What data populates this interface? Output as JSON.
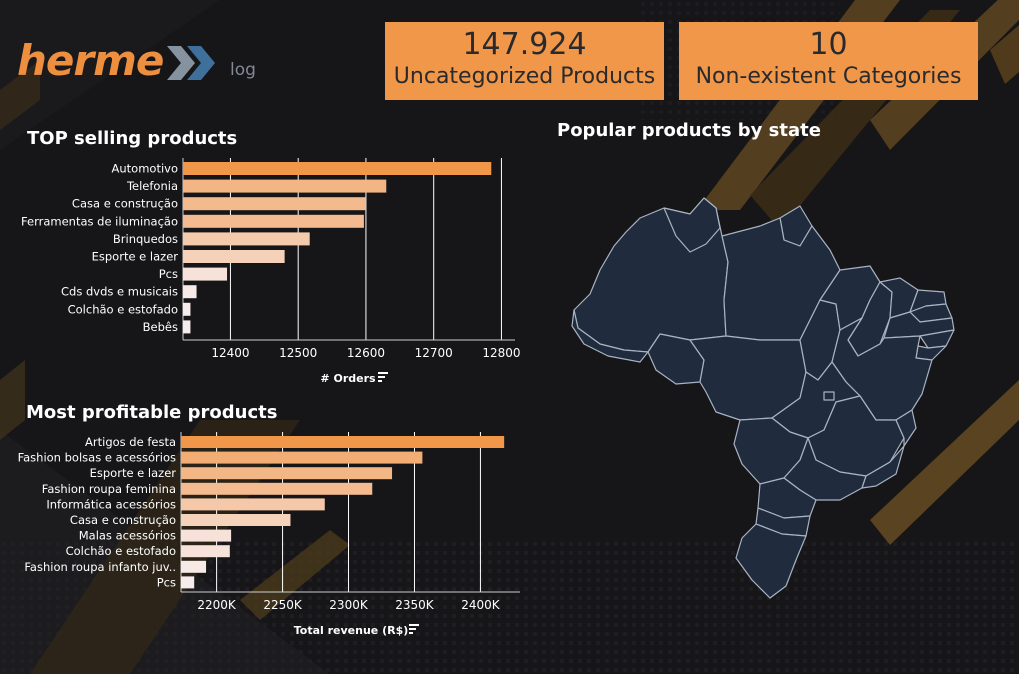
{
  "logo": {
    "word": "herme",
    "sub": "log"
  },
  "kpis": [
    {
      "value": "147.924",
      "label": "Uncategorized Products"
    },
    {
      "value": "10",
      "label": "Non-existent Categories"
    }
  ],
  "sections": {
    "top_selling_title": "TOP selling products",
    "profitable_title": "Most profitable products",
    "map_title": "Popular products by state"
  },
  "colors": {
    "accent": "#f0974a",
    "bar_gradient_high": "#f0974a",
    "bar_gradient_low": "#f7ecec",
    "map_fill": "#202c3e",
    "map_stroke": "#a8b4c2"
  },
  "chart_data": [
    {
      "type": "bar",
      "orientation": "horizontal",
      "title": "TOP selling products",
      "xlabel": "# Orders",
      "categories": [
        "Automotivo",
        "Telefonia",
        "Casa e construção",
        "Ferramentas de iluminação",
        "Brinquedos",
        "Esporte e lazer",
        "Pcs",
        "Cds dvds e musicais",
        "Colchão e estofado",
        "Bebês"
      ],
      "values": [
        12785,
        12630,
        12600,
        12597,
        12517,
        12480,
        12395,
        12350,
        12341,
        12341
      ],
      "xlim": [
        12330,
        12820
      ],
      "xticks": [
        12400,
        12500,
        12600,
        12700,
        12800
      ],
      "xtick_labels": [
        "12400",
        "12500",
        "12600",
        "12700",
        "12800"
      ],
      "grid": true
    },
    {
      "type": "bar",
      "orientation": "horizontal",
      "title": "Most profitable products",
      "xlabel": "Total revenue (R$)",
      "categories": [
        "Artigos de festa",
        "Fashion bolsas e acessórios",
        "Esporte e lazer",
        "Fashion roupa feminina",
        "Informática acessórios",
        "Casa e construção",
        "Malas acessórios",
        "Colchão e estofado",
        "Fashion roupa infanto juv..",
        "Pcs"
      ],
      "values": [
        2418000,
        2356000,
        2333000,
        2318000,
        2282000,
        2256000,
        2211000,
        2210000,
        2192000,
        2183000
      ],
      "xlim": [
        2173000,
        2430000
      ],
      "xticks": [
        2200000,
        2250000,
        2300000,
        2350000,
        2400000
      ],
      "xtick_labels": [
        "2200K",
        "2250K",
        "2300K",
        "2350K",
        "2400K"
      ],
      "grid": true
    }
  ]
}
